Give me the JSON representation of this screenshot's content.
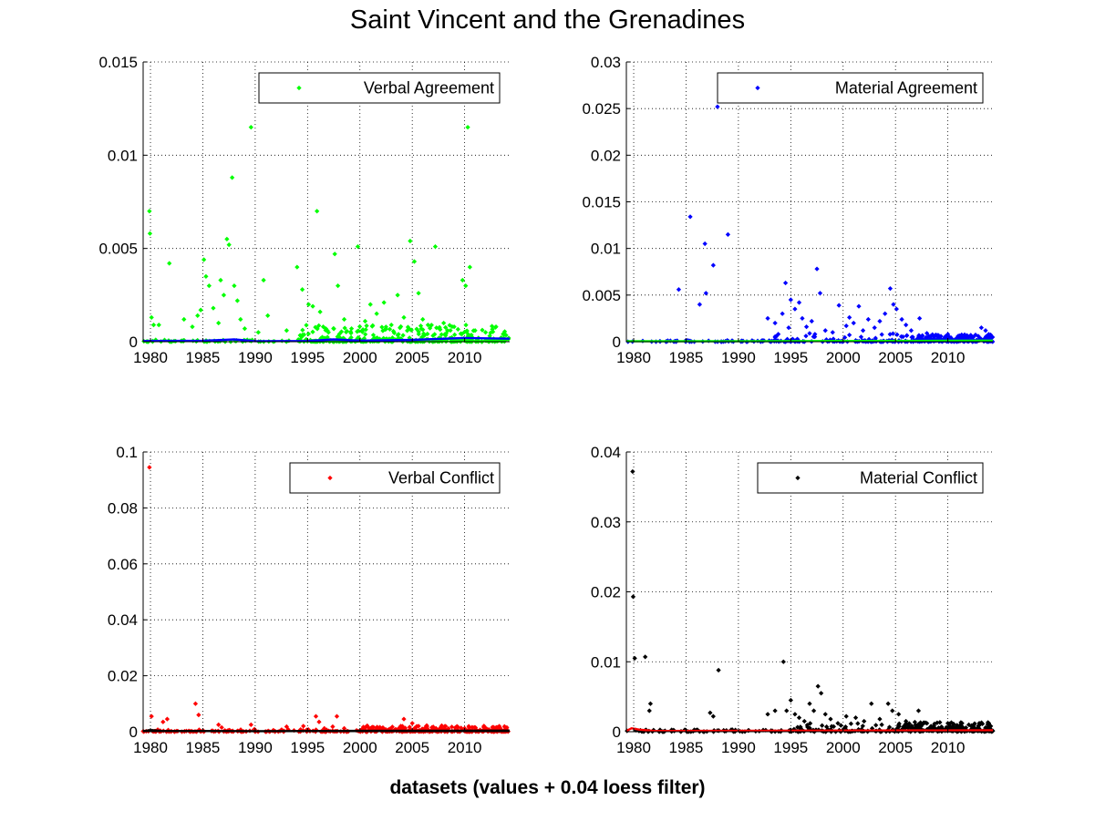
{
  "figure": {
    "title": "Saint Vincent and the Grenadines",
    "xlabel": "datasets (values + 0.04 loess filter)",
    "background": "#ffffff"
  },
  "chart_data": [
    {
      "type": "scatter",
      "legend_label": "Verbal Agreement",
      "legend_position": "top-right",
      "point_color": "#00ff00",
      "trend_color": "#0000ff",
      "grid": true,
      "xlim": [
        1979.3,
        2014.3
      ],
      "ylim": [
        0,
        0.015
      ],
      "xticks": [
        1980,
        1985,
        1990,
        1995,
        2000,
        2005,
        2010
      ],
      "yticks": [
        0,
        0.005,
        0.01,
        0.015
      ],
      "ytick_labels": [
        "0",
        "0.005",
        "0.01",
        "0.015"
      ],
      "points": [
        [
          1979.9,
          0.007
        ],
        [
          1979.95,
          0.0058
        ],
        [
          1980.1,
          0.0013
        ],
        [
          1980.3,
          0.0009
        ],
        [
          1980.8,
          0.0009
        ],
        [
          1981.8,
          0.0042
        ],
        [
          1983.2,
          0.0012
        ],
        [
          1984.0,
          0.0008
        ],
        [
          1984.5,
          0.0014
        ],
        [
          1984.8,
          0.0017
        ],
        [
          1985.1,
          0.0044
        ],
        [
          1985.3,
          0.0035
        ],
        [
          1985.6,
          0.003
        ],
        [
          1986.0,
          0.0018
        ],
        [
          1986.5,
          0.001
        ],
        [
          1986.7,
          0.0033
        ],
        [
          1987.0,
          0.0025
        ],
        [
          1987.3,
          0.0055
        ],
        [
          1987.5,
          0.0052
        ],
        [
          1987.8,
          0.0088
        ],
        [
          1988.0,
          0.003
        ],
        [
          1988.3,
          0.0022
        ],
        [
          1988.6,
          0.0012
        ],
        [
          1989.0,
          0.0007
        ],
        [
          1989.6,
          0.0115
        ],
        [
          1990.3,
          0.0005
        ],
        [
          1990.8,
          0.0033
        ],
        [
          1991.2,
          0.0014
        ],
        [
          1993.0,
          0.0006
        ],
        [
          1994.0,
          0.004
        ],
        [
          1994.5,
          0.0028
        ],
        [
          1995.1,
          0.002
        ],
        [
          1995.5,
          0.0019
        ],
        [
          1995.9,
          0.007
        ],
        [
          1996.2,
          0.0016
        ],
        [
          1996.5,
          0.0008
        ],
        [
          1997.0,
          0.0005
        ],
        [
          1997.6,
          0.0047
        ],
        [
          1997.9,
          0.003
        ],
        [
          1998.5,
          0.0012
        ],
        [
          1999.2,
          0.0007
        ],
        [
          1999.8,
          0.0051
        ],
        [
          2000.5,
          0.0011
        ],
        [
          2001.0,
          0.002
        ],
        [
          2001.6,
          0.0015
        ],
        [
          2002.3,
          0.0021
        ],
        [
          2003.0,
          0.0009
        ],
        [
          2003.6,
          0.0025
        ],
        [
          2004.2,
          0.0013
        ],
        [
          2004.8,
          0.0054
        ],
        [
          2005.2,
          0.0043
        ],
        [
          2005.6,
          0.0026
        ],
        [
          2006.0,
          0.0012
        ],
        [
          2006.5,
          0.0009
        ],
        [
          2007.2,
          0.0051
        ],
        [
          2008.0,
          0.001
        ],
        [
          2009.0,
          0.0008
        ],
        [
          2009.8,
          0.0033
        ],
        [
          2010.1,
          0.003
        ],
        [
          2010.3,
          0.0115
        ],
        [
          2010.5,
          0.004
        ],
        [
          2011.0,
          0.0006
        ],
        [
          2012.0,
          0.0005
        ],
        [
          2013.0,
          0.0008
        ],
        [
          2013.8,
          0.0004
        ]
      ],
      "dense_ranges": [
        [
          1994.0,
          2014.3,
          1e-05,
          0.0009,
          260
        ],
        [
          1979.3,
          2014.3,
          0.0,
          0.00012,
          160
        ]
      ],
      "trend": [
        [
          1979.3,
          4e-05
        ],
        [
          1985,
          5e-05
        ],
        [
          1988,
          0.00012
        ],
        [
          1990,
          3e-05
        ],
        [
          1995,
          4e-05
        ],
        [
          1997.5,
          0.00012
        ],
        [
          2000,
          6e-05
        ],
        [
          2005,
          0.0001
        ],
        [
          2010,
          0.0002
        ],
        [
          2014.3,
          0.00016
        ]
      ]
    },
    {
      "type": "scatter",
      "legend_label": "Material Agreement",
      "legend_position": "top-right",
      "point_color": "#0000ff",
      "trend_color": "#00ff00",
      "grid": true,
      "xlim": [
        1979.3,
        2014.3
      ],
      "ylim": [
        0,
        0.03
      ],
      "xticks": [
        1980,
        1985,
        1990,
        1995,
        2000,
        2005,
        2010
      ],
      "yticks": [
        0,
        0.005,
        0.01,
        0.015,
        0.02,
        0.025,
        0.03
      ],
      "ytick_labels": [
        "0",
        "0.005",
        "0.01",
        "0.015",
        "0.02",
        "0.025",
        "0.03"
      ],
      "points": [
        [
          1984.3,
          0.0056
        ],
        [
          1985.4,
          0.0134
        ],
        [
          1986.3,
          0.004
        ],
        [
          1986.8,
          0.0105
        ],
        [
          1986.9,
          0.0052
        ],
        [
          1987.6,
          0.0082
        ],
        [
          1988.0,
          0.0252
        ],
        [
          1989.0,
          0.0115
        ],
        [
          1992.8,
          0.0025
        ],
        [
          1993.5,
          0.002
        ],
        [
          1994.2,
          0.003
        ],
        [
          1994.5,
          0.0063
        ],
        [
          1994.8,
          0.0015
        ],
        [
          1995.0,
          0.0045
        ],
        [
          1995.4,
          0.0035
        ],
        [
          1995.8,
          0.0042
        ],
        [
          1996.1,
          0.0025
        ],
        [
          1996.5,
          0.0016
        ],
        [
          1997.0,
          0.0022
        ],
        [
          1997.5,
          0.0078
        ],
        [
          1997.8,
          0.0052
        ],
        [
          1998.3,
          0.0012
        ],
        [
          1999.0,
          0.001
        ],
        [
          1999.6,
          0.0039
        ],
        [
          2000.3,
          0.0017
        ],
        [
          2000.6,
          0.0026
        ],
        [
          2001.0,
          0.002
        ],
        [
          2001.5,
          0.0038
        ],
        [
          2001.9,
          0.0012
        ],
        [
          2002.4,
          0.0024
        ],
        [
          2003.0,
          0.0015
        ],
        [
          2003.5,
          0.0022
        ],
        [
          2004.0,
          0.003
        ],
        [
          2004.5,
          0.0057
        ],
        [
          2004.8,
          0.004
        ],
        [
          2005.1,
          0.0035
        ],
        [
          2005.6,
          0.0024
        ],
        [
          2006.0,
          0.0018
        ],
        [
          2006.5,
          0.0012
        ],
        [
          2007.3,
          0.0025
        ],
        [
          2008.0,
          0.0009
        ],
        [
          2009.0,
          0.0007
        ],
        [
          2010.0,
          0.0008
        ],
        [
          2011.0,
          0.0006
        ],
        [
          2012.0,
          0.0005
        ],
        [
          2013.2,
          0.0015
        ],
        [
          2013.6,
          0.0012
        ],
        [
          2013.9,
          0.0008
        ]
      ],
      "dense_ranges": [
        [
          2007.0,
          2014.3,
          5e-05,
          0.0008,
          180
        ],
        [
          1993.0,
          2007.0,
          5e-05,
          0.0009,
          60
        ],
        [
          1979.3,
          2014.3,
          0.0,
          0.00015,
          150
        ]
      ],
      "trend": [
        [
          1979.3,
          5e-05
        ],
        [
          1990,
          5e-05
        ],
        [
          2000,
          8e-05
        ],
        [
          2010,
          0.0001
        ],
        [
          2014.3,
          0.00012
        ]
      ]
    },
    {
      "type": "scatter",
      "legend_label": "Verbal Conflict",
      "legend_position": "top-right",
      "point_color": "#ff0000",
      "trend_color": "#000000",
      "grid": true,
      "xlim": [
        1979.3,
        2014.3
      ],
      "ylim": [
        0,
        0.1
      ],
      "xticks": [
        1980,
        1985,
        1990,
        1995,
        2000,
        2005,
        2010
      ],
      "yticks": [
        0,
        0.02,
        0.04,
        0.06,
        0.08,
        0.1
      ],
      "ytick_labels": [
        "0",
        "0.02",
        "0.04",
        "0.06",
        "0.08",
        "0.1"
      ],
      "points": [
        [
          1979.9,
          0.0945
        ],
        [
          1980.1,
          0.0055
        ],
        [
          1981.2,
          0.0035
        ],
        [
          1981.6,
          0.0045
        ],
        [
          1984.3,
          0.01
        ],
        [
          1984.6,
          0.006
        ],
        [
          1986.5,
          0.0025
        ],
        [
          1986.8,
          0.0015
        ],
        [
          1989.6,
          0.0025
        ],
        [
          1993.0,
          0.0018
        ],
        [
          1994.6,
          0.002
        ],
        [
          1995.8,
          0.0055
        ],
        [
          1996.1,
          0.0035
        ],
        [
          1996.6,
          0.0012
        ],
        [
          1997.4,
          0.0018
        ],
        [
          1997.8,
          0.0055
        ],
        [
          1998.5,
          0.0012
        ],
        [
          2001.0,
          0.0012
        ],
        [
          2004.2,
          0.0045
        ],
        [
          2005.0,
          0.003
        ],
        [
          2005.6,
          0.002
        ],
        [
          2007.0,
          0.0012
        ],
        [
          2010.0,
          0.0012
        ],
        [
          2013.0,
          0.0008
        ]
      ],
      "dense_ranges": [
        [
          2000.0,
          2014.3,
          0.0001,
          0.0022,
          220
        ],
        [
          1979.3,
          2000.0,
          0.0,
          0.0008,
          60
        ],
        [
          1979.3,
          2014.3,
          0.0,
          0.0003,
          140
        ]
      ],
      "trend": [
        [
          1979.3,
          0.0002
        ],
        [
          1980,
          0.0006
        ],
        [
          1981,
          0.0003
        ],
        [
          1990,
          0.0002
        ],
        [
          2000,
          0.0003
        ],
        [
          2014.3,
          0.0004
        ]
      ]
    },
    {
      "type": "scatter",
      "legend_label": "Material Conflict",
      "legend_position": "top-right",
      "point_color": "#000000",
      "trend_color": "#ff0000",
      "grid": true,
      "xlim": [
        1979.3,
        2014.3
      ],
      "ylim": [
        0,
        0.04
      ],
      "xticks": [
        1980,
        1985,
        1990,
        1995,
        2000,
        2005,
        2010
      ],
      "yticks": [
        0,
        0.01,
        0.02,
        0.03,
        0.04
      ],
      "ytick_labels": [
        "0",
        "0.01",
        "0.02",
        "0.03",
        "0.04"
      ],
      "points": [
        [
          1979.9,
          0.0372
        ],
        [
          1979.95,
          0.0193
        ],
        [
          1980.1,
          0.0105
        ],
        [
          1981.1,
          0.0107
        ],
        [
          1981.6,
          0.004
        ],
        [
          1981.5,
          0.003
        ],
        [
          1987.3,
          0.0027
        ],
        [
          1987.6,
          0.0022
        ],
        [
          1988.1,
          0.0088
        ],
        [
          1992.8,
          0.0025
        ],
        [
          1993.5,
          0.003
        ],
        [
          1994.3,
          0.01
        ],
        [
          1994.6,
          0.003
        ],
        [
          1995.0,
          0.0045
        ],
        [
          1995.4,
          0.0025
        ],
        [
          1995.8,
          0.002
        ],
        [
          1996.3,
          0.0015
        ],
        [
          1996.8,
          0.004
        ],
        [
          1997.2,
          0.003
        ],
        [
          1997.6,
          0.0065
        ],
        [
          1997.9,
          0.0055
        ],
        [
          1998.3,
          0.0025
        ],
        [
          1998.8,
          0.0018
        ],
        [
          1999.5,
          0.0012
        ],
        [
          2000.3,
          0.0022
        ],
        [
          2001.2,
          0.002
        ],
        [
          2002.0,
          0.0015
        ],
        [
          2002.7,
          0.004
        ],
        [
          2003.5,
          0.0018
        ],
        [
          2004.3,
          0.004
        ],
        [
          2004.7,
          0.003
        ],
        [
          2005.3,
          0.0025
        ],
        [
          2006.0,
          0.0015
        ],
        [
          2007.2,
          0.003
        ],
        [
          2008.0,
          0.0012
        ],
        [
          2010.0,
          0.0012
        ],
        [
          2012.0,
          0.001
        ]
      ],
      "dense_ranges": [
        [
          2005.0,
          2014.3,
          0.0001,
          0.0014,
          200
        ],
        [
          1995.0,
          2005.0,
          0.0001,
          0.0012,
          50
        ],
        [
          1979.3,
          2014.3,
          0.0,
          0.0003,
          150
        ]
      ],
      "trend": [
        [
          1979.3,
          0.0001
        ],
        [
          1979.8,
          0.0005
        ],
        [
          1980.5,
          0.0003
        ],
        [
          1982,
          0.0001
        ],
        [
          2014.3,
          0.0002
        ]
      ]
    }
  ]
}
